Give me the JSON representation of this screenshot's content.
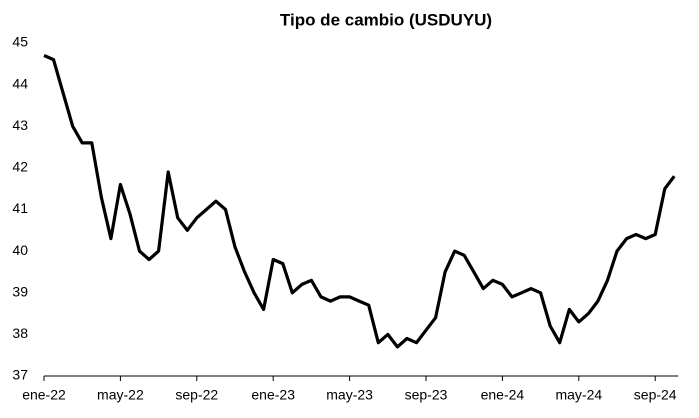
{
  "chart_data": {
    "type": "line",
    "title": "Tipo de cambio (USDUYU)",
    "categories": [
      "ene-22",
      null,
      null,
      null,
      null,
      null,
      null,
      null,
      "may-22",
      null,
      null,
      null,
      null,
      null,
      null,
      null,
      "sep-22",
      null,
      null,
      null,
      null,
      null,
      null,
      null,
      "ene-23",
      null,
      null,
      null,
      null,
      null,
      null,
      null,
      "may-23",
      null,
      null,
      null,
      null,
      null,
      null,
      null,
      "sep-23",
      null,
      null,
      null,
      null,
      null,
      null,
      null,
      "ene-24",
      null,
      null,
      null,
      null,
      null,
      null,
      null,
      "may-24",
      null,
      null,
      null,
      null,
      null,
      null,
      null,
      "sep-24",
      null,
      null
    ],
    "values": [
      44.7,
      44.6,
      43.8,
      43.0,
      42.6,
      42.6,
      41.3,
      40.3,
      41.6,
      40.9,
      40.0,
      39.8,
      40.0,
      41.9,
      40.8,
      40.5,
      40.8,
      41.0,
      41.2,
      41.0,
      40.1,
      39.5,
      39.0,
      38.6,
      39.8,
      39.7,
      39.0,
      39.2,
      39.3,
      38.9,
      38.8,
      38.9,
      38.9,
      38.8,
      38.7,
      37.8,
      38.0,
      37.7,
      37.9,
      37.8,
      38.1,
      38.4,
      39.5,
      40.0,
      39.9,
      39.5,
      39.1,
      39.3,
      39.2,
      38.9,
      39.0,
      39.1,
      39.0,
      38.2,
      37.8,
      38.6,
      38.3,
      38.5,
      38.8,
      39.3,
      40.0,
      40.3,
      40.4,
      40.3,
      40.4,
      41.5,
      41.8
    ],
    "color": "#000000",
    "ylim": [
      37,
      45
    ],
    "yticks": [
      37,
      38,
      39,
      40,
      41,
      42,
      43,
      44,
      45
    ]
  }
}
